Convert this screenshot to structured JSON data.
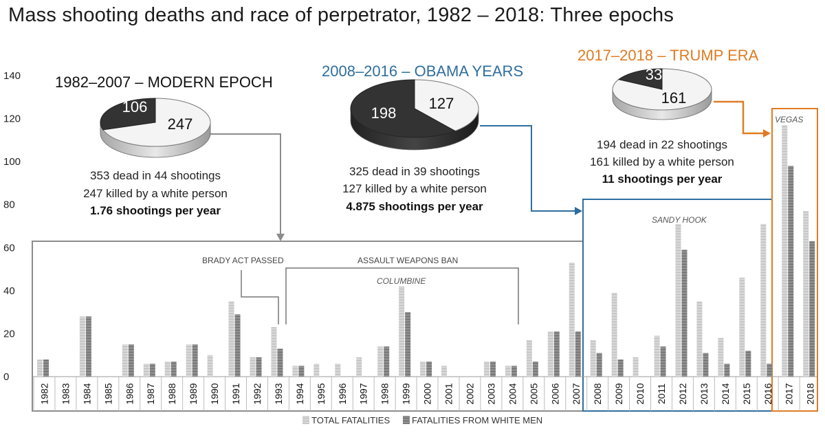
{
  "title": "Mass shooting deaths and race of perpetrator, 1982 – 2018: Three epochs",
  "colors": {
    "total": "#cfcfcf",
    "white": "#8a8a8a",
    "obama": "#2e6e9e",
    "trump": "#e07b22",
    "modern_frame": "#8c8c8c"
  },
  "chart_data": {
    "type": "bar",
    "title": "Mass shooting deaths and race of perpetrator, 1982 – 2018: Three epochs",
    "xlabel": "",
    "ylabel": "",
    "ylim": [
      0,
      140
    ],
    "yticks": [
      0,
      20,
      40,
      60,
      80,
      100,
      120,
      140
    ],
    "categories": [
      "1982",
      "1983",
      "1984",
      "1985",
      "1986",
      "1987",
      "1988",
      "1989",
      "1990",
      "1991",
      "1992",
      "1993",
      "1994",
      "1995",
      "1996",
      "1997",
      "1998",
      "1999",
      "2000",
      "2001",
      "2002",
      "2003",
      "2004",
      "2005",
      "2006",
      "2007",
      "2008",
      "2009",
      "2010",
      "2011",
      "2012",
      "2013",
      "2014",
      "2015",
      "2016",
      "2017",
      "2018"
    ],
    "series": [
      {
        "name": "TOTAL FATALITIES",
        "values": [
          8,
          0,
          28,
          0,
          15,
          6,
          7,
          15,
          10,
          35,
          9,
          23,
          5,
          6,
          6,
          9,
          14,
          42,
          7,
          5,
          0,
          7,
          5,
          17,
          21,
          53,
          17,
          39,
          9,
          19,
          71,
          35,
          18,
          46,
          71,
          117,
          77
        ]
      },
      {
        "name": "FATALITIES FROM WHITE MEN",
        "values": [
          8,
          0,
          28,
          0,
          15,
          6,
          7,
          15,
          0,
          29,
          9,
          13,
          5,
          0,
          0,
          0,
          14,
          30,
          7,
          0,
          0,
          7,
          5,
          7,
          21,
          21,
          11,
          8,
          0,
          14,
          59,
          11,
          6,
          12,
          6,
          98,
          63
        ]
      }
    ],
    "legend": [
      "TOTAL FATALITIES",
      "FATALITIES FROM WHITE MEN"
    ],
    "legend_position": "bottom",
    "annotations": [
      {
        "text": "BRADY ACT PASSED",
        "year": "1993"
      },
      {
        "text": "ASSAULT WEAPONS BAN",
        "from": "1994",
        "to": "2004"
      },
      {
        "text": "COLUMBINE",
        "year": "1999"
      },
      {
        "text": "SANDY HOOK",
        "year": "2012"
      },
      {
        "text": "VEGAS",
        "year": "2017"
      }
    ],
    "epochs": [
      {
        "name": "1982–2007 – MODERN EPOCH",
        "pie": [
          {
            "label": "247",
            "value": 247,
            "kind": "white"
          },
          {
            "label": "106",
            "value": 106,
            "kind": "other"
          }
        ],
        "lines": [
          "353 dead in 44 shootings",
          "247 killed by a white person"
        ],
        "bold_line": "1.76 shootings per year"
      },
      {
        "name": "2008–2016 – OBAMA YEARS",
        "pie": [
          {
            "label": "127",
            "value": 127,
            "kind": "white"
          },
          {
            "label": "198",
            "value": 198,
            "kind": "other"
          }
        ],
        "lines": [
          "325 dead in 39 shootings",
          "127 killed by a white person"
        ],
        "bold_line": "4.875 shootings per year"
      },
      {
        "name": "2017–2018 – TRUMP ERA",
        "pie": [
          {
            "label": "161",
            "value": 161,
            "kind": "white"
          },
          {
            "label": "33",
            "value": 33,
            "kind": "other"
          }
        ],
        "lines": [
          "194 dead in 22 shootings",
          "161 killed by a white person"
        ],
        "bold_line": "11 shootings per year"
      }
    ]
  }
}
